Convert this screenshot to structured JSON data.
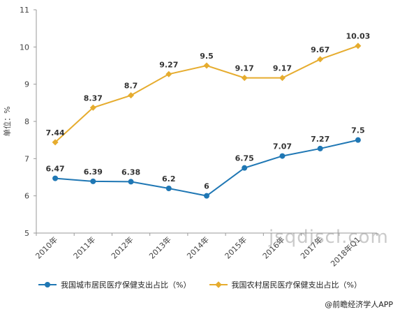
{
  "chart_data": {
    "type": "line",
    "categories": [
      "2010年",
      "2011年",
      "2012年",
      "2013年",
      "2014年",
      "2015年",
      "2016年",
      "2017年",
      "2018年Q1"
    ],
    "series": [
      {
        "name": "我国城市居民医疗保健支出占比（%）",
        "color": "#1f77b4",
        "marker": "circle",
        "values": [
          6.47,
          6.39,
          6.38,
          6.2,
          6,
          6.75,
          7.07,
          7.27,
          7.5
        ]
      },
      {
        "name": "我国农村居民医疗保健支出占比（%）",
        "color": "#e6ac2e",
        "marker": "diamond",
        "values": [
          7.44,
          8.37,
          8.7,
          9.27,
          9.5,
          9.17,
          9.17,
          9.67,
          10.03
        ]
      }
    ],
    "ylabel": "单位：%",
    "ylim": [
      5,
      11
    ],
    "yticks": [
      5,
      6,
      7,
      8,
      9,
      10,
      11
    ],
    "grid": false,
    "legend_position": "bottom"
  },
  "footer": "@前瞻经济学人APP",
  "watermark": "jsqdjscl.com"
}
